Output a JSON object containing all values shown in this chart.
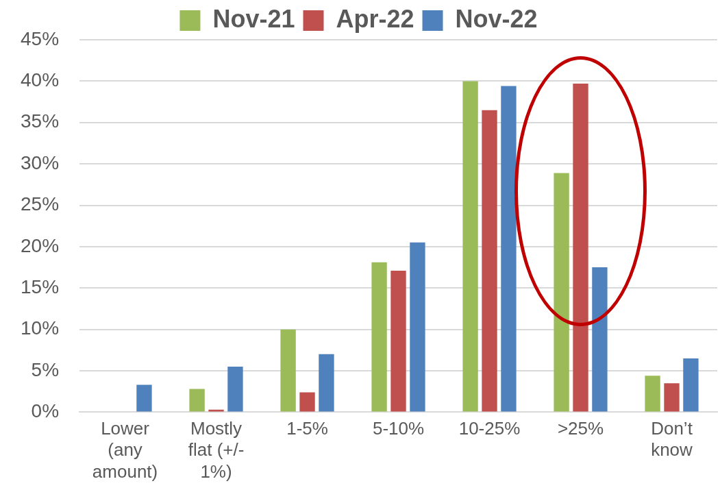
{
  "chart_data": {
    "type": "bar",
    "categories": [
      "Lower (any amount)",
      "Mostly flat (+/- 1%)",
      "1-5%",
      "5-10%",
      "10-25%",
      ">25%",
      "Don’t know"
    ],
    "series": [
      {
        "name": "Nov-21",
        "color": "#9bbb59",
        "values": [
          0,
          2.8,
          10,
          18.1,
          40,
          28.9,
          4.4
        ]
      },
      {
        "name": "Apr-22",
        "color": "#c0504d",
        "values": [
          0,
          0.3,
          2.4,
          17.1,
          36.5,
          39.7,
          3.5
        ]
      },
      {
        "name": "Nov-22",
        "color": "#4f81bd",
        "values": [
          3.3,
          5.5,
          7,
          20.5,
          39.4,
          17.5,
          6.5
        ]
      }
    ],
    "ylim": [
      0,
      45
    ],
    "yticks": [
      {
        "value": 0,
        "label": "0%"
      },
      {
        "value": 5,
        "label": "5%"
      },
      {
        "value": 10,
        "label": "10%"
      },
      {
        "value": 15,
        "label": "15%"
      },
      {
        "value": 20,
        "label": "20%"
      },
      {
        "value": 25,
        "label": "25%"
      },
      {
        "value": 30,
        "label": "30%"
      },
      {
        "value": 35,
        "label": "35%"
      },
      {
        "value": 40,
        "label": "40%"
      },
      {
        "value": 45,
        "label": "45%"
      }
    ],
    "grid": "y",
    "legend": "top"
  }
}
